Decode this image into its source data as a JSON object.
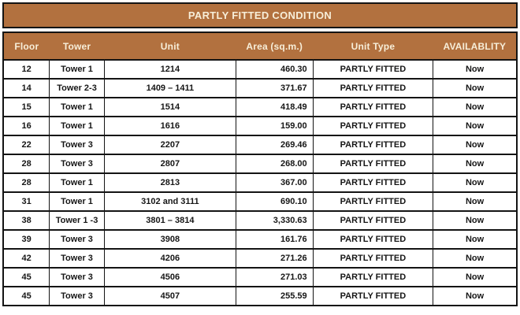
{
  "title_bar": {
    "text": "PARTLY FITTED CONDITION"
  },
  "colors": {
    "band_bg": "#b2713f",
    "band_text": "#f7eed9",
    "border": "#141414",
    "cell_text": "#161616",
    "cell_bg": "#ffffff",
    "page_bg": "#ffffff"
  },
  "table": {
    "columns": [
      {
        "key": "floor",
        "label": "Floor"
      },
      {
        "key": "tower",
        "label": "Tower"
      },
      {
        "key": "unit",
        "label": "Unit"
      },
      {
        "key": "area",
        "label": "Area (sq.m.)"
      },
      {
        "key": "unit_type",
        "label": "Unit Type"
      },
      {
        "key": "availability",
        "label": "AVAILABLITY"
      }
    ],
    "rows": [
      {
        "floor": "12",
        "tower": "Tower 1",
        "unit": "1214",
        "area": "460.30",
        "unit_type": "PARTLY FITTED",
        "availability": "Now"
      },
      {
        "floor": "14",
        "tower": "Tower 2-3",
        "unit": "1409 – 1411",
        "area": "371.67",
        "unit_type": "PARTLY FITTED",
        "availability": "Now"
      },
      {
        "floor": "15",
        "tower": "Tower 1",
        "unit": "1514",
        "area": "418.49",
        "unit_type": "PARTLY FITTED",
        "availability": "Now"
      },
      {
        "floor": "16",
        "tower": "Tower 1",
        "unit": "1616",
        "area": "159.00",
        "unit_type": "PARTLY FITTED",
        "availability": "Now"
      },
      {
        "floor": "22",
        "tower": "Tower 3",
        "unit": "2207",
        "area": "269.46",
        "unit_type": "PARTLY FITTED",
        "availability": "Now"
      },
      {
        "floor": "28",
        "tower": "Tower 3",
        "unit": "2807",
        "area": "268.00",
        "unit_type": "PARTLY FITTED",
        "availability": "Now"
      },
      {
        "floor": "28",
        "tower": "Tower 1",
        "unit": "2813",
        "area": "367.00",
        "unit_type": "PARTLY FITTED",
        "availability": "Now"
      },
      {
        "floor": "31",
        "tower": "Tower 1",
        "unit": "3102 and 3111",
        "area": "690.10",
        "unit_type": "PARTLY FITTED",
        "availability": "Now"
      },
      {
        "floor": "38",
        "tower": "Tower 1 -3",
        "unit": "3801 – 3814",
        "area": "3,330.63",
        "unit_type": "PARTLY FITTED",
        "availability": "Now"
      },
      {
        "floor": "39",
        "tower": "Tower 3",
        "unit": "3908",
        "area": "161.76",
        "unit_type": "PARTLY FITTED",
        "availability": "Now"
      },
      {
        "floor": "42",
        "tower": "Tower 3",
        "unit": "4206",
        "area": "271.26",
        "unit_type": "PARTLY FITTED",
        "availability": "Now"
      },
      {
        "floor": "45",
        "tower": "Tower 3",
        "unit": "4506",
        "area": "271.03",
        "unit_type": "PARTLY FITTED",
        "availability": "Now"
      },
      {
        "floor": "45",
        "tower": "Tower 3",
        "unit": "4507",
        "area": "255.59",
        "unit_type": "PARTLY FITTED",
        "availability": "Now"
      }
    ]
  }
}
